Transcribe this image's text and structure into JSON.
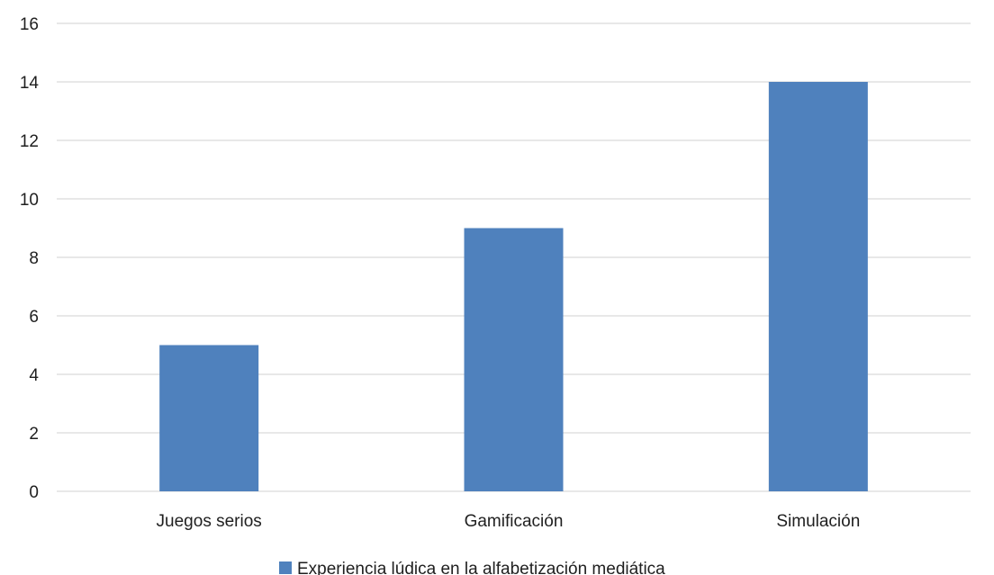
{
  "chart_data": {
    "type": "bar",
    "categories": [
      "Juegos serios",
      "Gamificación",
      "Simulación"
    ],
    "series": [
      {
        "name": "Experiencia lúdica en la alfabetización mediática",
        "values": [
          5,
          9,
          14
        ],
        "color": "#4f81bd"
      }
    ],
    "ylim": [
      0,
      16
    ],
    "yticks": [
      0,
      2,
      4,
      6,
      8,
      10,
      12,
      14,
      16
    ],
    "grid": true,
    "legend_position": "bottom"
  }
}
